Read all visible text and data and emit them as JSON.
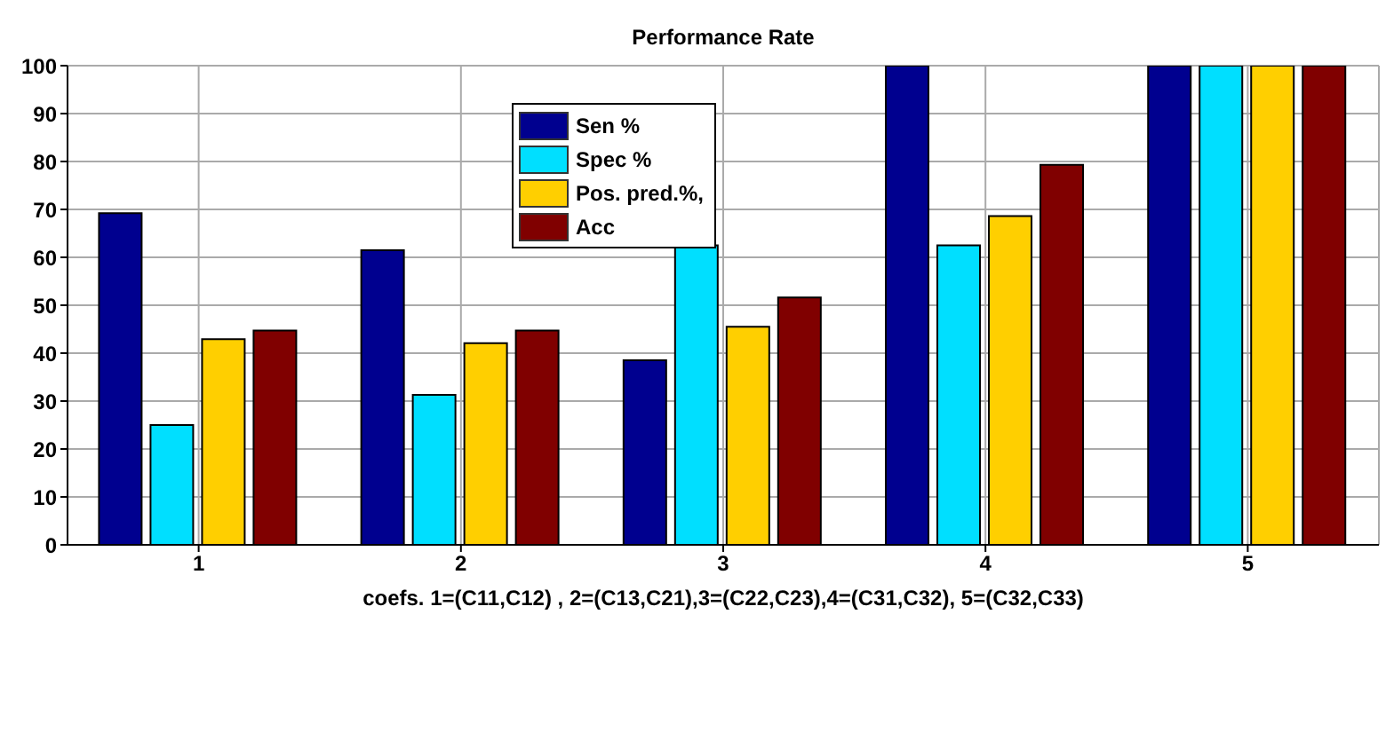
{
  "chart_data": {
    "type": "bar",
    "title": "Performance Rate",
    "xlabel": "coefs.  1=(C11,C12)  , 2=(C13,C21),3=(C22,C23),4=(C31,C32),  5=(C32,C33)",
    "categories": [
      "1",
      "2",
      "3",
      "4",
      "5"
    ],
    "series": [
      {
        "name": "Sen %",
        "color": "#00008f",
        "values": [
          69.2,
          61.5,
          38.5,
          100,
          100
        ]
      },
      {
        "name": "Spec %",
        "color": "#00dfff",
        "values": [
          25,
          31.3,
          62.5,
          62.5,
          100
        ]
      },
      {
        "name": "Pos. pred.%,",
        "color": "#ffcf00",
        "values": [
          42.9,
          42.1,
          45.5,
          68.6,
          100
        ]
      },
      {
        "name": "Acc",
        "color": "#800000",
        "values": [
          44.7,
          44.7,
          51.6,
          79.3,
          100
        ]
      }
    ],
    "ylim": [
      0,
      100
    ],
    "yticks": [
      0,
      10,
      20,
      30,
      40,
      50,
      60,
      70,
      80,
      90,
      100
    ],
    "grid": true,
    "legend": "top"
  }
}
